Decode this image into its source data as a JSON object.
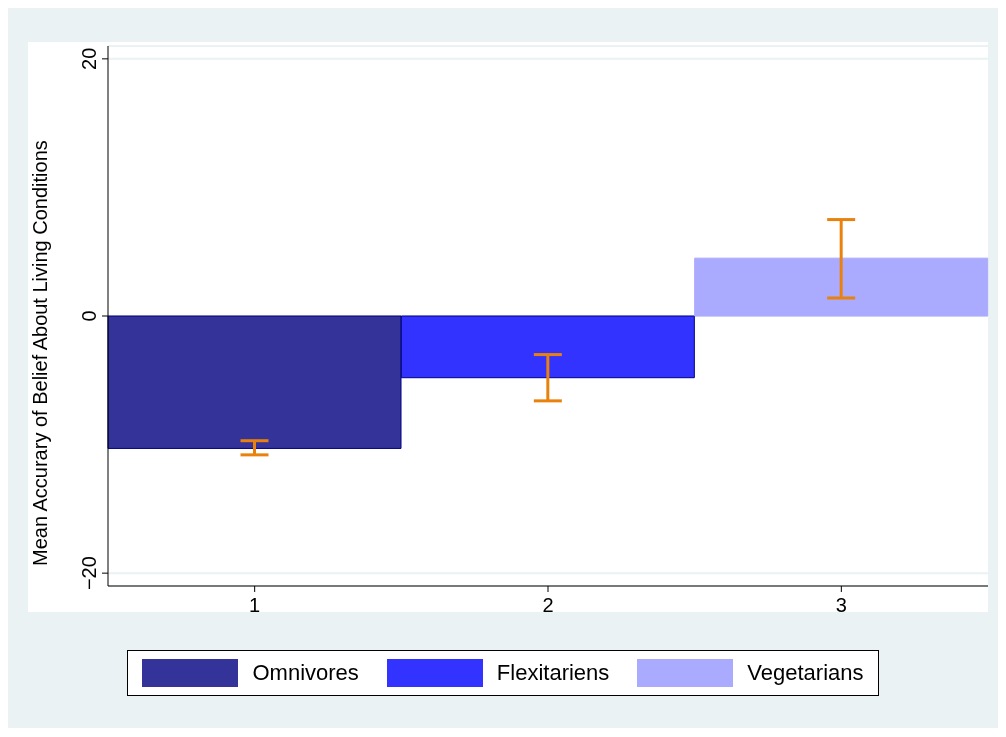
{
  "chart_data": {
    "type": "bar",
    "ylabel": "Mean Accurary of Belief About Living Conditions",
    "categories": [
      "1",
      "2",
      "3"
    ],
    "stacked": true,
    "series": [
      {
        "name": "Omnivores",
        "color": "#333399",
        "values": [
          -10.3,
          null,
          null
        ],
        "errors": [
          [
            -10.8,
            -9.7
          ],
          null,
          null
        ]
      },
      {
        "name": "Flexitariens",
        "color": "#3333ff",
        "values": [
          null,
          -4.8,
          null
        ],
        "errors": [
          null,
          [
            -6.6,
            -3.0
          ],
          null
        ]
      },
      {
        "name": "Vegetarians",
        "color": "#aaaaff",
        "values": [
          null,
          null,
          4.5
        ],
        "errors": [
          null,
          null,
          [
            1.4,
            7.5
          ]
        ]
      }
    ],
    "ylim": [
      -21,
      21
    ],
    "yticks": [
      {
        "value": -20,
        "label": "−20"
      },
      0,
      20
    ],
    "grid": "y",
    "legend": "bottom"
  }
}
